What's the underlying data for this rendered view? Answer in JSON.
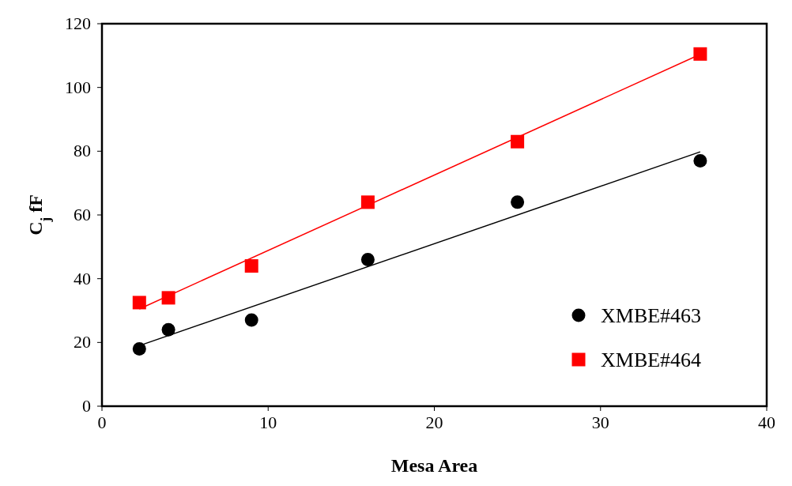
{
  "chart_data": {
    "type": "scatter",
    "xlabel": "Mesa Area",
    "ylabel": "C$_{j}$ fF",
    "xlim": [
      0,
      40
    ],
    "xticks": [
      0,
      10,
      20,
      30,
      40
    ],
    "ylim": [
      0,
      120
    ],
    "yticks": [
      0,
      20,
      40,
      60,
      80,
      100,
      120
    ],
    "grid": false,
    "legend": "bottom right",
    "series": [
      {
        "name": "XMBE#463",
        "color": "#000000",
        "marker": "circle",
        "x": [
          2.25,
          4,
          9,
          16,
          25,
          36
        ],
        "values": [
          18,
          24,
          27,
          46,
          64,
          77
        ]
      },
      {
        "name": "XMBE#464",
        "color": "#ff0000",
        "marker": "square",
        "x": [
          2.25,
          4,
          9,
          16,
          25,
          36
        ],
        "values": [
          32.5,
          34,
          44,
          64,
          83,
          110.5
        ]
      },
      {
        "type": "line",
        "color": "#000000",
        "x": [
          2.25,
          36
        ],
        "values": [
          19,
          79.8
        ]
      },
      {
        "type": "line",
        "color": "#ff0000",
        "x": [
          2.25,
          36
        ],
        "values": [
          30.5,
          110.4
        ]
      }
    ]
  }
}
